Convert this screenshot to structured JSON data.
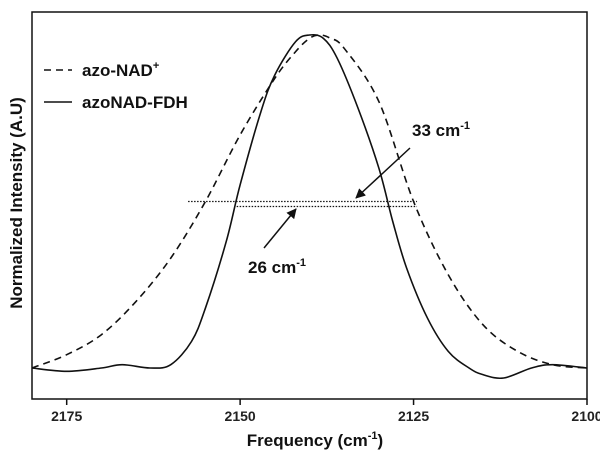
{
  "chart_data": {
    "type": "line",
    "xlabel": "Frequency (cm",
    "xlabel_sup": "-1",
    "xlabel_end": ")",
    "ylabel": "Normalized Intensity (A.U)",
    "xlim": [
      2180,
      2100
    ],
    "ylim": [
      0,
      1
    ],
    "x_reversed": true,
    "x_ticks": [
      2175,
      2150,
      2125,
      2100
    ],
    "grid": false,
    "legend_position": "top-left",
    "series": [
      {
        "name": "azo-NAD",
        "name_sup": "+",
        "style": "dashed",
        "color": "#111111",
        "x": [
          2180,
          2175,
          2170,
          2165,
          2160,
          2155,
          2150,
          2145,
          2142,
          2140,
          2138.5,
          2137,
          2135,
          2130,
          2125,
          2120,
          2115,
          2110,
          2105,
          2100
        ],
        "y": [
          0.0,
          0.04,
          0.1,
          0.2,
          0.33,
          0.5,
          0.7,
          0.87,
          0.95,
          0.99,
          1.0,
          0.99,
          0.96,
          0.8,
          0.5,
          0.28,
          0.13,
          0.05,
          0.01,
          0.0
        ]
      },
      {
        "name": "azoNAD-FDH",
        "style": "solid",
        "color": "#111111",
        "x": [
          2180,
          2175,
          2170,
          2167,
          2163,
          2160,
          2157,
          2155,
          2152,
          2150,
          2147,
          2145,
          2142,
          2140,
          2138,
          2136,
          2133,
          2130,
          2128,
          2126,
          2123,
          2120,
          2117,
          2115,
          2112,
          2108,
          2105,
          2100
        ],
        "y": [
          0.0,
          -0.01,
          0.0,
          0.01,
          0.0,
          0.01,
          0.08,
          0.18,
          0.38,
          0.55,
          0.77,
          0.88,
          0.98,
          1.0,
          0.99,
          0.93,
          0.78,
          0.6,
          0.44,
          0.3,
          0.15,
          0.05,
          0.0,
          -0.02,
          -0.03,
          0.0,
          0.01,
          0.0
        ]
      }
    ],
    "fwhm_lines": [
      {
        "name": "33 cm-1",
        "x_start": 2157.5,
        "x_end": 2124.5,
        "y": 0.5
      },
      {
        "name": "26 cm-1",
        "x_start": 2150.5,
        "x_end": 2124.5,
        "y": 0.485
      }
    ],
    "annotations": [
      {
        "text": "33 cm",
        "sup": "-1"
      },
      {
        "text": "26 cm",
        "sup": "-1"
      }
    ]
  }
}
